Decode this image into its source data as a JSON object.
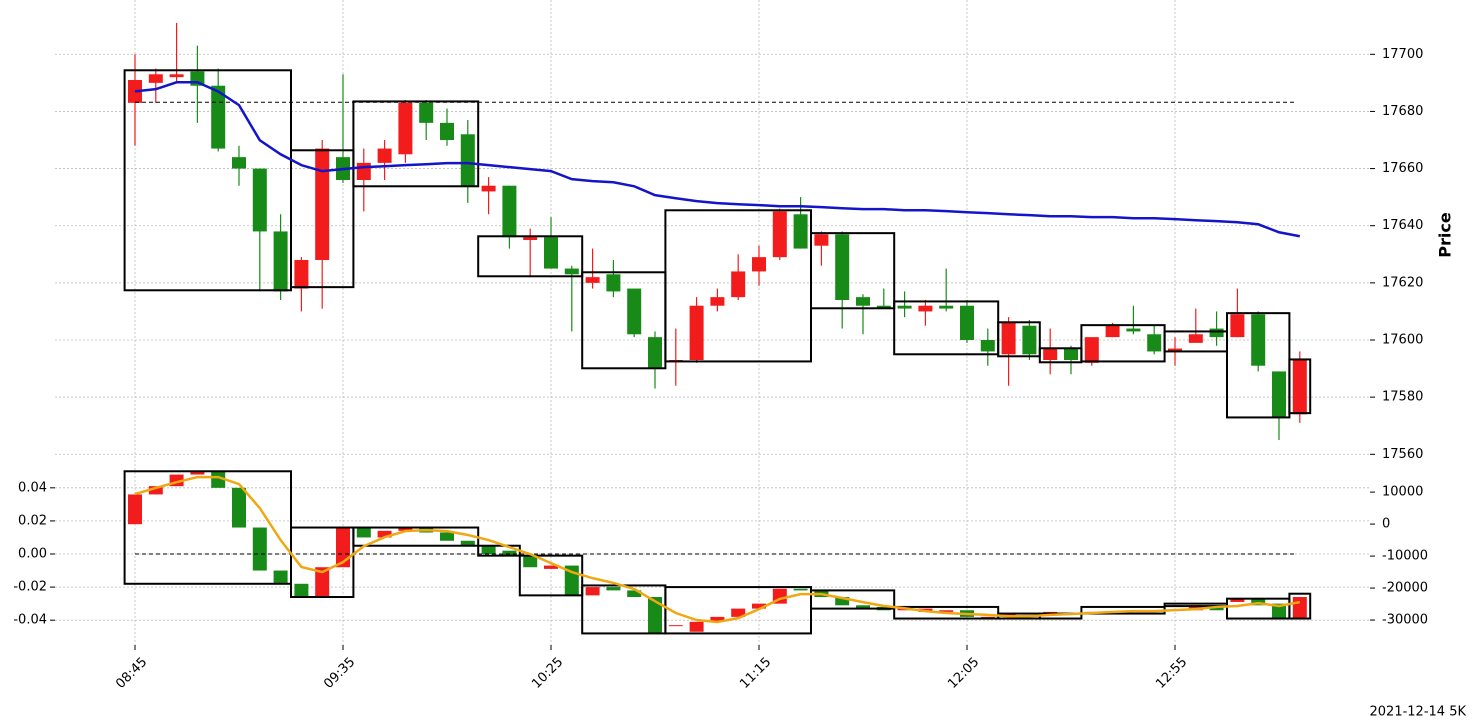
{
  "chart_data": [
    {
      "type": "candlestick",
      "ylabel": "Price",
      "categories": [
        "08:45",
        null,
        null,
        null,
        null,
        null,
        null,
        null,
        null,
        null,
        "09:35",
        null,
        null,
        null,
        null,
        null,
        null,
        null,
        null,
        null,
        "10:25",
        null,
        null,
        null,
        null,
        null,
        null,
        null,
        null,
        null,
        "11:15",
        null,
        null,
        null,
        null,
        null,
        null,
        null,
        null,
        null,
        "12:05",
        null,
        null,
        null,
        null,
        null,
        null,
        null,
        null,
        null,
        "12:55",
        null,
        null,
        null,
        null,
        null,
        null
      ],
      "open": [
        17683,
        17690,
        17692,
        17694,
        17689,
        17664,
        17660,
        17638,
        17618,
        17628,
        17664,
        17656,
        17662,
        17665,
        17683,
        17676,
        17672,
        17652,
        17654,
        17635,
        17636,
        17625,
        17620,
        17623,
        17618,
        17601,
        17593,
        17593,
        17612,
        17615,
        17624,
        17629,
        17644,
        17633,
        17637,
        17615,
        17612,
        17612,
        17610,
        17612,
        17612,
        17600,
        17595,
        17605,
        17593,
        17597,
        17592,
        17601,
        17604,
        17602,
        17596,
        17599,
        17604,
        17601,
        17609,
        17589,
        17574
      ],
      "high": [
        17700,
        17695,
        17711,
        17703,
        17695,
        17668,
        17660,
        17644,
        17629,
        17670,
        17693,
        17667,
        17670,
        17684,
        17684,
        17681,
        17677,
        17657,
        17654,
        17639,
        17643,
        17626,
        17632,
        17628,
        17618,
        17603,
        17604,
        17615,
        17618,
        17630,
        17633,
        17646,
        17650,
        17638,
        17638,
        17616,
        17618,
        17617,
        17614,
        17625,
        17614,
        17604,
        17608,
        17607,
        17604,
        17598,
        17601,
        17606,
        17612,
        17605,
        17601,
        17611,
        17610,
        17618,
        17610,
        17589,
        17596
      ],
      "low": [
        17668,
        17683,
        17690,
        17676,
        17666,
        17654,
        17617,
        17614,
        17610,
        17611,
        17655,
        17645,
        17656,
        17662,
        17670,
        17668,
        17648,
        17644,
        17632,
        17622,
        17625,
        17603,
        17618,
        17615,
        17601,
        17583,
        17584,
        17592,
        17610,
        17614,
        17619,
        17628,
        17632,
        17626,
        17604,
        17602,
        17611,
        17608,
        17605,
        17610,
        17599,
        17591,
        17584,
        17593,
        17588,
        17588,
        17591,
        17601,
        17602,
        17595,
        17591,
        17599,
        17598,
        17601,
        17589,
        17565,
        17571
      ],
      "close": [
        17691,
        17693,
        17693,
        17689,
        17667,
        17660,
        17638,
        17617,
        17628,
        17667,
        17656,
        17662,
        17667,
        17683,
        17676,
        17670,
        17654,
        17654,
        17636,
        17636,
        17625,
        17623,
        17622,
        17617,
        17602,
        17590,
        17593,
        17612,
        17615,
        17624,
        17629,
        17645,
        17632,
        17637,
        17614,
        17612,
        17611,
        17611,
        17612,
        17611,
        17600,
        17596,
        17606,
        17595,
        17597,
        17593,
        17601,
        17605,
        17603,
        17596,
        17597,
        17602,
        17601,
        17609,
        17591,
        17573,
        17593
      ],
      "up_color": "#f21c1c",
      "down_color": "#178a17",
      "series": [
        {
          "color": "#1414c8",
          "values": [
            17687.0,
            17687.8,
            17690.2,
            17690.2,
            17687.0,
            17682.2,
            17669.9,
            17665.0,
            17661.2,
            17659.1,
            17659.8,
            17660.5,
            17660.8,
            17661.2,
            17661.5,
            17661.9,
            17661.9,
            17661.2,
            17660.5,
            17659.8,
            17659.1,
            17656.3,
            17655.6,
            17655.2,
            17653.8,
            17650.7,
            17649.6,
            17648.6,
            17647.9,
            17647.5,
            17647.2,
            17646.8,
            17646.8,
            17646.5,
            17646.1,
            17645.8,
            17645.8,
            17645.4,
            17645.4,
            17645.1,
            17644.7,
            17644.4,
            17644.0,
            17643.7,
            17643.3,
            17643.3,
            17643.0,
            17643.0,
            17642.6,
            17642.6,
            17642.3,
            17641.9,
            17641.6,
            17641.2,
            17640.5,
            17637.7,
            17636.3
          ]
        }
      ],
      "hline": 17683.2,
      "boxes": [
        {
          "start": 0,
          "end": 7,
          "high": 17694.4,
          "low": 17617.4
        },
        {
          "start": 8,
          "end": 10,
          "high": 17666.4,
          "low": 17618.5
        },
        {
          "start": 11,
          "end": 16,
          "high": 17683.5,
          "low": 17653.8
        },
        {
          "start": 17,
          "end": 21,
          "high": 17636.3,
          "low": 17622.3
        },
        {
          "start": 22,
          "end": 25,
          "high": 17623.7,
          "low": 17590.1
        },
        {
          "start": 26,
          "end": 32,
          "high": 17645.4,
          "low": 17592.5
        },
        {
          "start": 33,
          "end": 36,
          "high": 17637.4,
          "low": 17611.1
        },
        {
          "start": 37,
          "end": 41,
          "high": 17613.5,
          "low": 17595
        },
        {
          "start": 42,
          "end": 43,
          "high": 17606.2,
          "low": 17594.3
        },
        {
          "start": 44,
          "end": 45,
          "high": 17597.1,
          "low": 17592.2
        },
        {
          "start": 46,
          "end": 49,
          "high": 17605.2,
          "low": 17592.5
        },
        {
          "start": 50,
          "end": 52,
          "high": 17603,
          "low": 17596
        },
        {
          "start": 53,
          "end": 55,
          "high": 17609.4,
          "low": 17572.9
        },
        {
          "start": 56,
          "end": 56,
          "high": 17593.2,
          "low": 17574.4
        }
      ],
      "ylim": [
        17558,
        17719
      ],
      "yticks": [
        17560,
        17580,
        17600,
        17620,
        17640,
        17660,
        17680,
        17700
      ],
      "grid": true
    },
    {
      "type": "candlestick",
      "open": [
        0.018,
        0.036,
        0.041,
        0.048,
        0.05,
        0.04,
        0.016,
        -0.01,
        -0.018,
        -0.026,
        -0.008,
        0.016,
        0.01,
        0.014,
        0.016,
        0.013,
        0.008,
        0.005,
        0.002,
        -0.001,
        -0.009,
        -0.007,
        -0.025,
        -0.02,
        -0.022,
        -0.026,
        -0.043,
        -0.047,
        -0.041,
        -0.038,
        -0.033,
        -0.03,
        -0.021,
        -0.022,
        -0.026,
        -0.031,
        -0.032,
        -0.034,
        -0.035,
        -0.035,
        -0.034,
        -0.038,
        -0.037,
        -0.036,
        -0.036,
        -0.036,
        -0.036,
        -0.035,
        -0.035,
        -0.034,
        -0.032,
        -0.034,
        -0.031,
        -0.029,
        -0.027,
        -0.03,
        -0.039
      ],
      "close": [
        0.036,
        0.041,
        0.048,
        0.05,
        0.04,
        0.016,
        -0.01,
        -0.018,
        -0.026,
        -0.008,
        0.016,
        0.01,
        0.014,
        0.016,
        0.013,
        0.008,
        0.005,
        0,
        -0.001,
        -0.008,
        -0.007,
        -0.025,
        -0.02,
        -0.022,
        -0.026,
        -0.048,
        -0.043,
        -0.041,
        -0.038,
        -0.033,
        -0.03,
        -0.021,
        -0.022,
        -0.026,
        -0.031,
        -0.033,
        -0.034,
        -0.032,
        -0.033,
        -0.034,
        -0.038,
        -0.038,
        -0.036,
        -0.036,
        -0.035,
        -0.036,
        -0.035,
        -0.035,
        -0.034,
        -0.034,
        -0.031,
        -0.031,
        -0.034,
        -0.027,
        -0.031,
        -0.039,
        -0.026
      ],
      "up_color": "#f21c1c",
      "down_color": "#178a17",
      "series": [
        {
          "color": "#f0a812",
          "axis": "y2",
          "values": [
            9400,
            11300,
            13100,
            14700,
            14700,
            12500,
            5000,
            -5000,
            -13400,
            -15000,
            -11900,
            -6900,
            -4100,
            -2200,
            -1900,
            -2200,
            -3400,
            -5000,
            -7200,
            -9400,
            -12200,
            -15000,
            -16900,
            -18400,
            -20300,
            -24100,
            -27800,
            -30000,
            -30600,
            -29400,
            -26600,
            -23400,
            -21900,
            -21900,
            -23100,
            -24400,
            -25600,
            -26300,
            -27200,
            -27800,
            -28100,
            -28400,
            -28800,
            -28800,
            -28400,
            -28100,
            -27800,
            -27500,
            -27200,
            -27200,
            -26900,
            -26600,
            -25900,
            -25600,
            -24700,
            -25600,
            -24400
          ]
        }
      ],
      "hline": 0,
      "boxes": [
        {
          "start": 0,
          "end": 7,
          "high": 0.05,
          "low": -0.018
        },
        {
          "start": 8,
          "end": 10,
          "high": 0.016,
          "low": -0.026
        },
        {
          "start": 11,
          "end": 16,
          "high": 0.016,
          "low": 0.005
        },
        {
          "start": 17,
          "end": 18,
          "high": 0.005,
          "low": -0.001
        },
        {
          "start": 19,
          "end": 21,
          "high": -0.001,
          "low": -0.025
        },
        {
          "start": 22,
          "end": 25,
          "high": -0.019,
          "low": -0.048
        },
        {
          "start": 26,
          "end": 32,
          "high": -0.02,
          "low": -0.048
        },
        {
          "start": 33,
          "end": 36,
          "high": -0.022,
          "low": -0.033
        },
        {
          "start": 37,
          "end": 41,
          "high": -0.032,
          "low": -0.039
        },
        {
          "start": 42,
          "end": 43,
          "high": -0.036,
          "low": -0.039
        },
        {
          "start": 44,
          "end": 45,
          "high": -0.036,
          "low": -0.039
        },
        {
          "start": 46,
          "end": 49,
          "high": -0.032,
          "low": -0.036
        },
        {
          "start": 50,
          "end": 52,
          "high": -0.03,
          "low": -0.0315
        },
        {
          "start": 53,
          "end": 55,
          "high": -0.027,
          "low": -0.039
        },
        {
          "start": 56,
          "end": 56,
          "high": -0.024,
          "low": -0.039
        }
      ],
      "ylim": [
        -0.055,
        0.055
      ],
      "yticks": [
        -0.04,
        -0.02,
        {
          "value": 0,
          "label": "0.00"
        },
        0.02,
        0.04
      ],
      "y2lim": [
        -37800,
        19100
      ],
      "y2ticks": [
        -30000,
        -20000,
        -10000,
        0,
        10000
      ],
      "grid": true,
      "annotation": "2021-12-14 5K"
    }
  ]
}
